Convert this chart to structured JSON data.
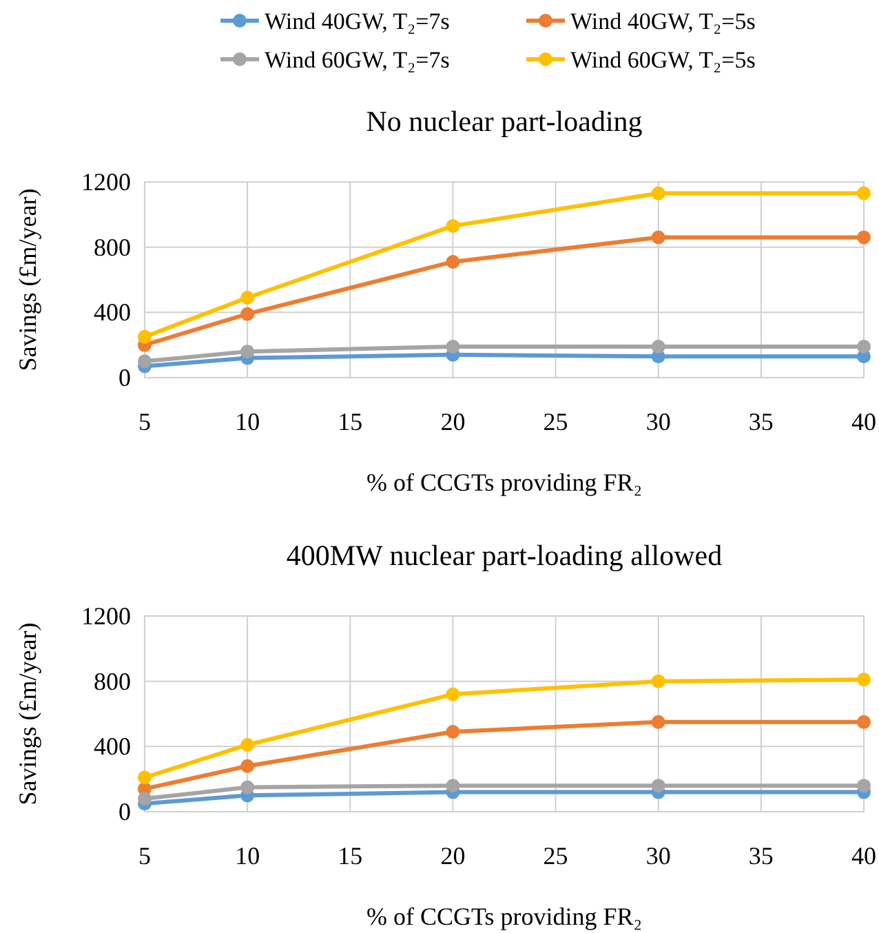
{
  "chart_data": [
    {
      "type": "line",
      "title": "No nuclear part-loading",
      "xlabel": "% of CCGTs providing FR₂",
      "ylabel": "Savings (£m/year)",
      "x": [
        5,
        10,
        20,
        30,
        40
      ],
      "xlim": [
        5,
        40
      ],
      "xticks": [
        5,
        10,
        15,
        20,
        25,
        30,
        35,
        40
      ],
      "ylim": [
        0,
        1200
      ],
      "yticks": [
        0,
        400,
        800,
        1200
      ],
      "grid": true,
      "marker": "circle",
      "legend": "top",
      "series": [
        {
          "name": "Wind 40GW, T₂=7s",
          "color": "#5b9bd5",
          "values": [
            70,
            120,
            140,
            130,
            130
          ]
        },
        {
          "name": "Wind 40GW, T₂=5s",
          "color": "#ed7d31",
          "values": [
            200,
            390,
            710,
            860,
            860
          ]
        },
        {
          "name": "Wind 60GW, T₂=7s",
          "color": "#a5a5a5",
          "values": [
            100,
            160,
            190,
            190,
            190
          ]
        },
        {
          "name": "Wind 60GW, T₂=5s",
          "color": "#ffc000",
          "values": [
            250,
            490,
            930,
            1130,
            1130
          ]
        }
      ]
    },
    {
      "type": "line",
      "title": "400MW nuclear part-loading allowed",
      "xlabel": "% of CCGTs providing FR₂",
      "ylabel": "Savings (£m/year)",
      "x": [
        5,
        10,
        20,
        30,
        40
      ],
      "xlim": [
        5,
        40
      ],
      "xticks": [
        5,
        10,
        15,
        20,
        25,
        30,
        35,
        40
      ],
      "ylim": [
        0,
        1200
      ],
      "yticks": [
        0,
        400,
        800,
        1200
      ],
      "grid": true,
      "marker": "circle",
      "series": [
        {
          "color": "#5b9bd5",
          "values": [
            50,
            100,
            120,
            120,
            120
          ]
        },
        {
          "color": "#ed7d31",
          "values": [
            140,
            280,
            490,
            550,
            550
          ]
        },
        {
          "color": "#a5a5a5",
          "values": [
            80,
            150,
            160,
            160,
            160
          ]
        },
        {
          "color": "#ffc000",
          "values": [
            210,
            410,
            720,
            800,
            810
          ]
        }
      ]
    }
  ]
}
